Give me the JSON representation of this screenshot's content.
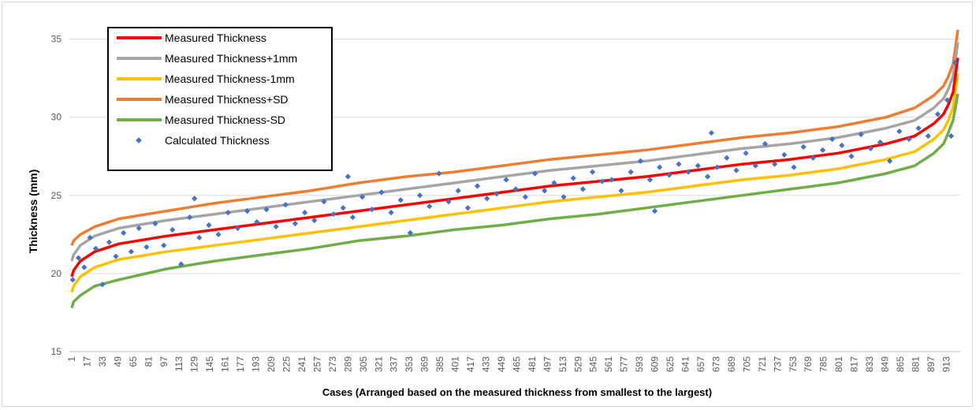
{
  "chart_data": {
    "type": "line",
    "title": "",
    "xlabel": "Cases (Arranged based on the measured thickness from smallest to the largest)",
    "ylabel": "Thickness (mm)",
    "ylim": [
      15,
      37
    ],
    "yticks": [
      15,
      20,
      25,
      30,
      35
    ],
    "xlim": [
      1,
      925
    ],
    "xtick_labels": [
      "1",
      "17",
      "33",
      "49",
      "65",
      "81",
      "97",
      "113",
      "129",
      "145",
      "161",
      "177",
      "193",
      "209",
      "225",
      "241",
      "257",
      "273",
      "289",
      "305",
      "321",
      "337",
      "353",
      "369",
      "385",
      "401",
      "417",
      "433",
      "449",
      "465",
      "481",
      "497",
      "513",
      "529",
      "545",
      "561",
      "577",
      "593",
      "609",
      "625",
      "641",
      "657",
      "673",
      "689",
      "705",
      "721",
      "737",
      "753",
      "769",
      "785",
      "801",
      "817",
      "833",
      "849",
      "865",
      "881",
      "897",
      "913"
    ],
    "grid": "horizontal",
    "legend_position": "top-left",
    "series": [
      {
        "name": "Measured Thickness",
        "color": "#ff0000",
        "kind": "line",
        "x": [
          1,
          3,
          10,
          25,
          50,
          100,
          150,
          200,
          250,
          300,
          350,
          400,
          450,
          500,
          550,
          600,
          650,
          700,
          750,
          800,
          850,
          880,
          900,
          910,
          915,
          920,
          925
        ],
        "y": [
          19.8,
          20.2,
          20.8,
          21.4,
          21.9,
          22.4,
          22.8,
          23.2,
          23.6,
          24.0,
          24.4,
          24.8,
          25.2,
          25.6,
          25.9,
          26.2,
          26.6,
          27.0,
          27.3,
          27.7,
          28.3,
          28.8,
          29.6,
          30.2,
          30.8,
          31.6,
          33.8
        ]
      },
      {
        "name": "Measured Thickness+1mm",
        "color": "#a5a5a5",
        "kind": "line",
        "x": [
          1,
          3,
          10,
          25,
          50,
          100,
          150,
          200,
          250,
          300,
          350,
          400,
          450,
          500,
          550,
          600,
          650,
          700,
          750,
          800,
          850,
          880,
          900,
          910,
          915,
          920,
          925
        ],
        "y": [
          20.8,
          21.2,
          21.8,
          22.4,
          22.9,
          23.4,
          23.8,
          24.2,
          24.6,
          25.0,
          25.4,
          25.8,
          26.2,
          26.6,
          26.9,
          27.2,
          27.6,
          28.0,
          28.3,
          28.7,
          29.3,
          29.8,
          30.6,
          31.2,
          31.8,
          32.6,
          34.8
        ]
      },
      {
        "name": "Measured Thickness-1mm",
        "color": "#ffc000",
        "kind": "line",
        "x": [
          1,
          3,
          10,
          25,
          50,
          100,
          150,
          200,
          250,
          300,
          350,
          400,
          450,
          500,
          550,
          600,
          650,
          700,
          750,
          800,
          850,
          880,
          900,
          910,
          915,
          920,
          925
        ],
        "y": [
          18.8,
          19.2,
          19.8,
          20.4,
          20.9,
          21.4,
          21.8,
          22.2,
          22.6,
          23.0,
          23.4,
          23.8,
          24.2,
          24.6,
          24.9,
          25.2,
          25.6,
          26.0,
          26.3,
          26.7,
          27.3,
          27.8,
          28.6,
          29.2,
          29.8,
          30.6,
          32.8
        ]
      },
      {
        "name": "Measured Thickness+SD",
        "color": "#ed7d31",
        "kind": "line",
        "x": [
          1,
          3,
          10,
          25,
          50,
          100,
          150,
          200,
          250,
          300,
          350,
          400,
          450,
          500,
          550,
          600,
          650,
          700,
          750,
          800,
          850,
          880,
          900,
          910,
          915,
          920,
          925
        ],
        "y": [
          21.8,
          22.1,
          22.5,
          23.0,
          23.5,
          24.0,
          24.5,
          24.9,
          25.3,
          25.8,
          26.2,
          26.5,
          26.9,
          27.3,
          27.6,
          27.9,
          28.3,
          28.7,
          29.0,
          29.4,
          30.0,
          30.6,
          31.4,
          32.0,
          32.6,
          33.4,
          35.6
        ]
      },
      {
        "name": "Measured Thickness-SD",
        "color": "#70ad47",
        "kind": "line",
        "x": [
          1,
          3,
          10,
          25,
          50,
          100,
          150,
          200,
          250,
          300,
          350,
          400,
          450,
          500,
          550,
          600,
          650,
          700,
          750,
          800,
          850,
          880,
          900,
          910,
          915,
          920,
          925
        ],
        "y": [
          17.8,
          18.2,
          18.6,
          19.2,
          19.6,
          20.3,
          20.8,
          21.2,
          21.6,
          22.1,
          22.4,
          22.8,
          23.1,
          23.5,
          23.8,
          24.2,
          24.6,
          25.0,
          25.4,
          25.8,
          26.4,
          26.9,
          27.7,
          28.3,
          29.0,
          29.8,
          31.5
        ]
      },
      {
        "name": "Calculated Thickness",
        "color": "#4472c4",
        "kind": "scatter",
        "marker": "diamond",
        "x": [
          2,
          8,
          14,
          20,
          26,
          33,
          40,
          47,
          55,
          63,
          71,
          79,
          88,
          97,
          106,
          115,
          124,
          129,
          134,
          144,
          154,
          164,
          174,
          184,
          194,
          204,
          214,
          224,
          234,
          244,
          254,
          264,
          274,
          284,
          289,
          294,
          304,
          314,
          324,
          334,
          344,
          354,
          364,
          374,
          384,
          394,
          404,
          414,
          424,
          434,
          444,
          454,
          464,
          474,
          484,
          494,
          504,
          514,
          524,
          534,
          544,
          554,
          564,
          574,
          584,
          594,
          604,
          609,
          614,
          624,
          634,
          644,
          654,
          664,
          668,
          674,
          684,
          694,
          704,
          714,
          724,
          734,
          744,
          754,
          764,
          774,
          784,
          794,
          804,
          814,
          824,
          834,
          844,
          854,
          864,
          874,
          884,
          894,
          904,
          914,
          918,
          922
        ],
        "y": [
          19.6,
          21.0,
          20.4,
          22.3,
          21.6,
          19.3,
          22.0,
          21.1,
          22.6,
          21.4,
          22.9,
          21.7,
          23.2,
          21.8,
          22.8,
          20.6,
          23.6,
          24.8,
          22.3,
          23.1,
          22.5,
          23.9,
          22.9,
          24.0,
          23.3,
          24.1,
          23.0,
          24.4,
          23.2,
          23.9,
          23.4,
          24.6,
          23.8,
          24.2,
          26.2,
          23.6,
          24.9,
          24.1,
          25.2,
          23.9,
          24.7,
          22.6,
          25.0,
          24.3,
          26.4,
          24.6,
          25.3,
          24.2,
          25.6,
          24.8,
          25.1,
          26.0,
          25.4,
          24.9,
          26.4,
          25.3,
          25.8,
          24.9,
          26.1,
          25.4,
          26.5,
          25.9,
          26.0,
          25.3,
          26.5,
          27.2,
          26.0,
          24.0,
          26.8,
          26.3,
          27.0,
          26.5,
          26.9,
          26.2,
          29.0,
          26.8,
          27.4,
          26.6,
          27.7,
          26.9,
          28.3,
          27.0,
          27.6,
          26.8,
          28.1,
          27.4,
          27.9,
          28.6,
          28.2,
          27.5,
          28.9,
          28.0,
          28.4,
          27.2,
          29.1,
          28.6,
          29.3,
          28.8,
          30.2,
          31.1,
          28.8,
          33.5
        ]
      }
    ]
  }
}
